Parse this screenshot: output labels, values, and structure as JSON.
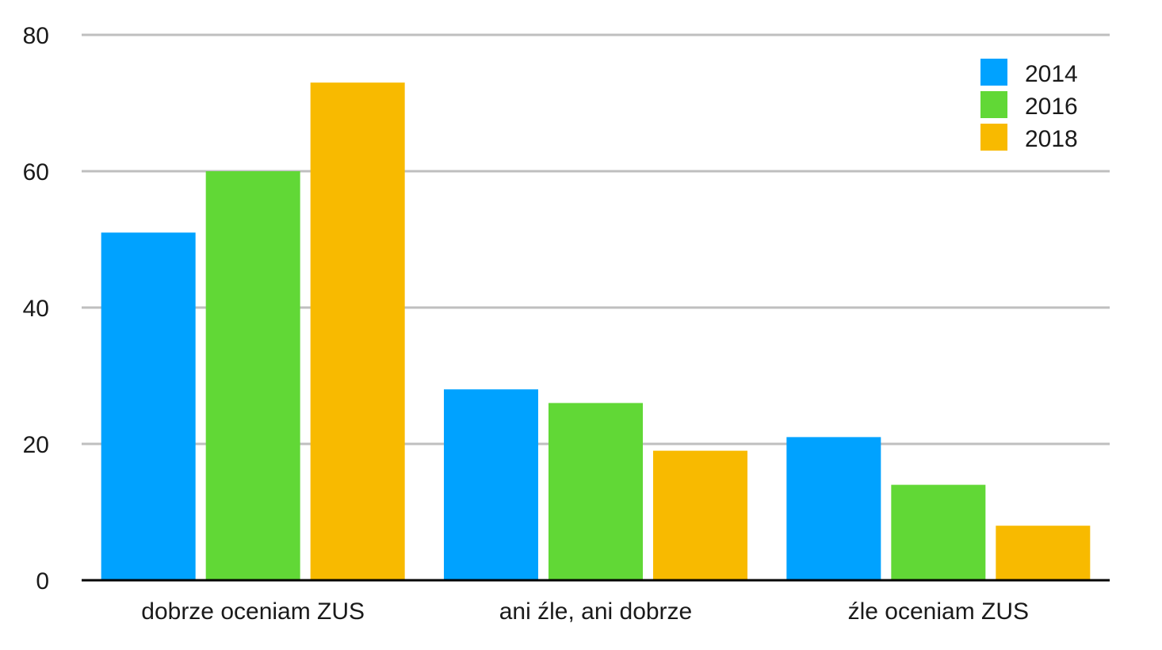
{
  "chart_data": {
    "type": "bar",
    "categories": [
      "dobrze oceniam ZUS",
      "ani źle, ani dobrze",
      "źle oceniam ZUS"
    ],
    "series": [
      {
        "name": "2014",
        "color": "#00a2ff",
        "values": [
          51,
          28,
          21
        ]
      },
      {
        "name": "2016",
        "color": "#61d836",
        "values": [
          60,
          26,
          14
        ]
      },
      {
        "name": "2018",
        "color": "#f8ba00",
        "values": [
          73,
          19,
          8
        ]
      }
    ],
    "ylim": [
      0,
      80
    ],
    "yticks": [
      "0",
      "20",
      "40",
      "60",
      "80"
    ],
    "grid": true,
    "grid_color": "#bfbfbf",
    "axis_color": "#000000",
    "legend_position": "top-right",
    "title": "",
    "xlabel": "",
    "ylabel": ""
  }
}
